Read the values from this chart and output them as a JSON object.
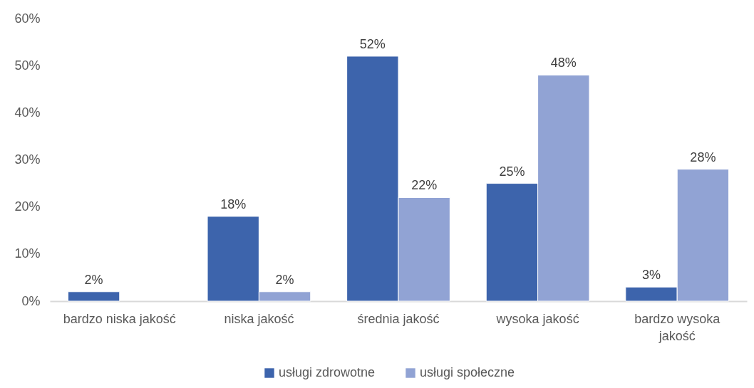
{
  "chart_data": {
    "type": "bar",
    "categories": [
      "bardzo niska jakość",
      "niska jakość",
      "średnia jakość",
      "wysoka jakość",
      "bardzo wysoka jakość"
    ],
    "series": [
      {
        "name": "usługi zdrowotne",
        "color": "#3d64ac",
        "values": [
          2,
          18,
          52,
          25,
          3
        ],
        "value_labels": [
          "2%",
          "18%",
          "52%",
          "25%",
          "3%"
        ]
      },
      {
        "name": "usługi społeczne",
        "color": "#91a3d4",
        "values": [
          null,
          2,
          22,
          48,
          28
        ],
        "value_labels": [
          null,
          "2%",
          "22%",
          "48%",
          "28%"
        ]
      }
    ],
    "ylim": [
      0,
      60
    ],
    "yticks": [
      {
        "value": 0,
        "label": "0%"
      },
      {
        "value": 10,
        "label": "10%"
      },
      {
        "value": 20,
        "label": "20%"
      },
      {
        "value": 30,
        "label": "30%"
      },
      {
        "value": 40,
        "label": "40%"
      },
      {
        "value": 50,
        "label": "50%"
      },
      {
        "value": 60,
        "label": "60%"
      }
    ],
    "legend": "bottom"
  }
}
